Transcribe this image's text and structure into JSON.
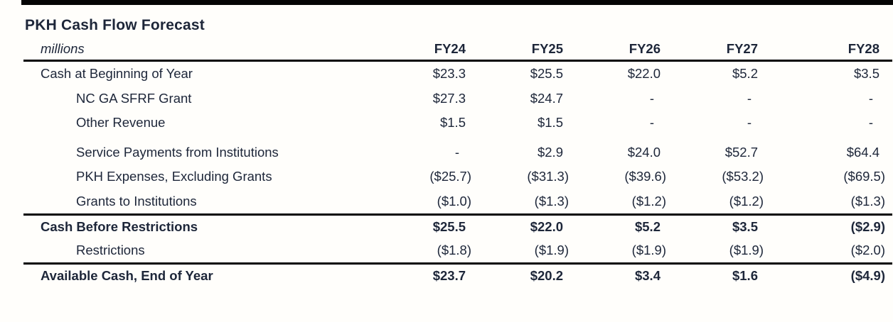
{
  "colors": {
    "background": "#fffefb",
    "text": "#1d2639",
    "rule": "#010101",
    "top_bar": "#050505"
  },
  "table": {
    "title": "PKH Cash Flow Forecast",
    "unit_label": "millions",
    "columns": [
      "FY24",
      "FY25",
      "FY26",
      "FY27",
      "FY28"
    ],
    "rows": [
      {
        "label": "Cash at Beginning of Year",
        "values": [
          "$23.3",
          "$25.5",
          "$22.0",
          "$5.2",
          "$3.5"
        ],
        "indent": false,
        "bold": false,
        "rule_above": false,
        "gap_above": false
      },
      {
        "label": "NC GA SFRF Grant",
        "values": [
          "$27.3",
          "$24.7",
          "-",
          "-",
          "-"
        ],
        "indent": true,
        "bold": false,
        "rule_above": false,
        "gap_above": false
      },
      {
        "label": "Other Revenue",
        "values": [
          "$1.5",
          "$1.5",
          "-",
          "-",
          "-"
        ],
        "indent": true,
        "bold": false,
        "rule_above": false,
        "gap_above": false
      },
      {
        "label": "Service Payments from Institutions",
        "values": [
          "-",
          "$2.9",
          "$24.0",
          "$52.7",
          "$64.4"
        ],
        "indent": true,
        "bold": false,
        "rule_above": false,
        "gap_above": true
      },
      {
        "label": "PKH Expenses, Excluding Grants",
        "values": [
          "($25.7)",
          "($31.3)",
          "($39.6)",
          "($53.2)",
          "($69.5)"
        ],
        "indent": true,
        "bold": false,
        "rule_above": false,
        "gap_above": false
      },
      {
        "label": "Grants to Institutions",
        "values": [
          "($1.0)",
          "($1.3)",
          "($1.2)",
          "($1.2)",
          "($1.3)"
        ],
        "indent": true,
        "bold": false,
        "rule_above": false,
        "gap_above": false
      },
      {
        "label": "Cash Before Restrictions",
        "values": [
          "$25.5",
          "$22.0",
          "$5.2",
          "$3.5",
          "($2.9)"
        ],
        "indent": false,
        "bold": true,
        "rule_above": true,
        "gap_above": false
      },
      {
        "label": "Restrictions",
        "values": [
          "($1.8)",
          "($1.9)",
          "($1.9)",
          "($1.9)",
          "($2.0)"
        ],
        "indent": true,
        "bold": false,
        "rule_above": false,
        "gap_above": false
      },
      {
        "label": "Available Cash, End of Year",
        "values": [
          "$23.7",
          "$20.2",
          "$3.4",
          "$1.6",
          "($4.9)"
        ],
        "indent": false,
        "bold": true,
        "rule_above": true,
        "gap_above": false
      }
    ]
  }
}
